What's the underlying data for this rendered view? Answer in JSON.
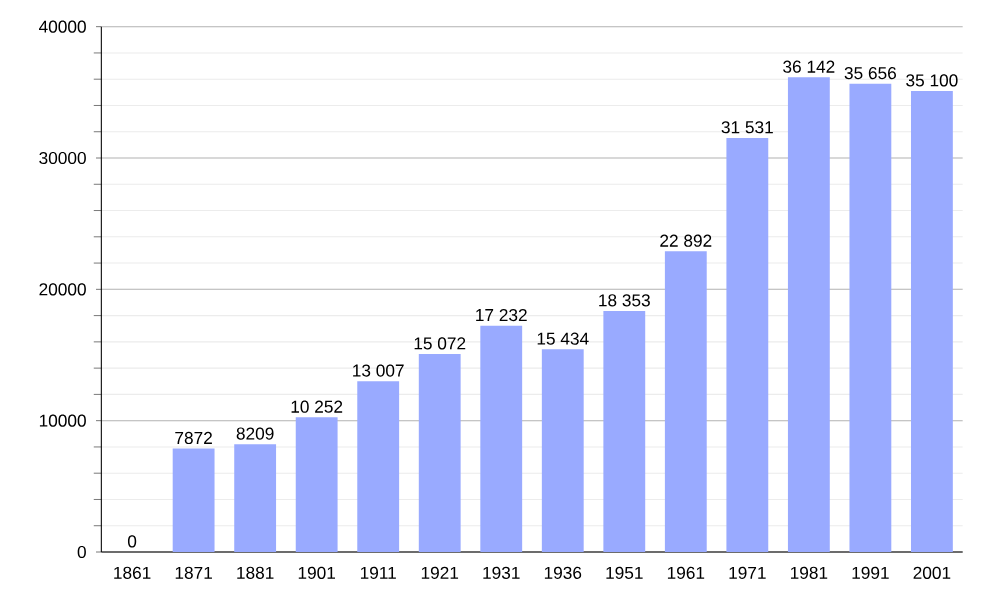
{
  "chart_data": {
    "type": "bar",
    "categories": [
      "1861",
      "1871",
      "1881",
      "1901",
      "1911",
      "1921",
      "1931",
      "1936",
      "1951",
      "1961",
      "1971",
      "1981",
      "1991",
      "2001"
    ],
    "values": [
      0,
      7872,
      8209,
      10252,
      13007,
      15072,
      17232,
      15434,
      18353,
      22892,
      31531,
      36142,
      35656,
      35100
    ],
    "value_labels": [
      "0",
      "7872",
      "8209",
      "10 252",
      "13 007",
      "15 072",
      "17 232",
      "15 434",
      "18 353",
      "22 892",
      "31 531",
      "36 142",
      "35 656",
      "35 100"
    ],
    "color": "#99aaff",
    "ylim": [
      0,
      40000
    ],
    "yticks": [
      0,
      10000,
      20000,
      30000,
      40000
    ],
    "grid": "y"
  }
}
